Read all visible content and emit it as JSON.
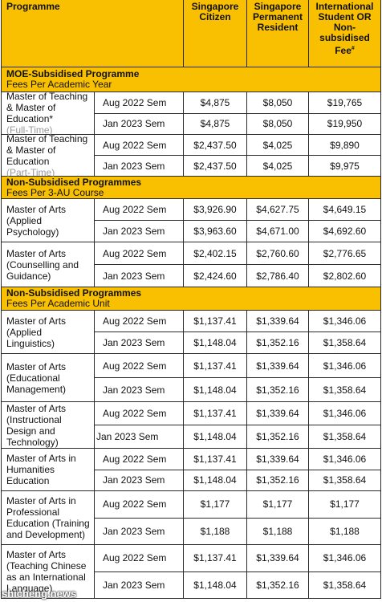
{
  "headers": {
    "programme": "Programme",
    "citizen": "Singapore Citizen",
    "pr": "Singapore Permanent Resident",
    "intl": "International Student OR Non-subsidised Fee",
    "intl_mark": "#"
  },
  "sections": [
    {
      "title": "MOE-Subsidised Programme",
      "subtitle": "Fees Per Academic Year",
      "programmes": [
        {
          "name": "Master of Teaching & Master of Education*",
          "note": "(Full-Time)",
          "rows": [
            {
              "sem": "Aug 2022 Sem",
              "citizen": "$4,875",
              "pr": "$8,050",
              "intl": "$19,765"
            },
            {
              "sem": "Jan 2023 Sem",
              "citizen": "$4,875",
              "pr": "$8,050",
              "intl": "$19,950"
            }
          ]
        },
        {
          "name": "Master of Teaching & Master of Education",
          "note": "(Part-Time)",
          "rows": [
            {
              "sem": "Aug 2022 Sem",
              "citizen": "$2,437.50",
              "pr": "$4,025",
              "intl": "$9,890"
            },
            {
              "sem": "Jan 2023 Sem",
              "citizen": "$2,437.50",
              "pr": "$4,025",
              "intl": "$9,975"
            }
          ]
        }
      ]
    },
    {
      "title": "Non-Subsidised Programmes",
      "subtitle": "Fees Per 3-AU Course",
      "programmes": [
        {
          "name": "Master of Arts (Applied Psychology)",
          "note": "",
          "rows": [
            {
              "sem": "Aug 2022 Sem",
              "citizen": "$3,926.90",
              "pr": "$4,627.75",
              "intl": "$4,649.15"
            },
            {
              "sem": "Jan 2023 Sem",
              "citizen": "$3,963.60",
              "pr": "$4,671.00",
              "intl": "$4,692.60"
            }
          ]
        },
        {
          "name": "Master of Arts (Counselling and Guidance)",
          "note": "",
          "rows": [
            {
              "sem": "Aug 2022 Sem",
              "citizen": "$2,402.15",
              "pr": "$2,760.60",
              "intl": "$2,776.65"
            },
            {
              "sem": "Jan 2023 Sem",
              "citizen": "$2,424.60",
              "pr": "$2,786.40",
              "intl": "$2,802.60"
            }
          ]
        }
      ]
    },
    {
      "title": "Non-Subsidised Programmes",
      "subtitle": "Fees Per Academic Unit",
      "programmes": [
        {
          "name": "Master of Arts (Applied Linguistics)",
          "note": "",
          "rows": [
            {
              "sem": "Aug 2022 Sem",
              "citizen": "$1,137.41",
              "pr": "$1,339.64",
              "intl": "$1,346.06"
            },
            {
              "sem": "Jan 2023 Sem",
              "citizen": "$1,148.04",
              "pr": "$1,352.16",
              "intl": "$1,358.64"
            }
          ]
        },
        {
          "name": "Master of Arts (Educational Management)",
          "note": "",
          "rows": [
            {
              "sem": "Aug 2022 Sem",
              "citizen": "$1,137.41",
              "pr": "$1,339.64",
              "intl": "$1,346.06"
            },
            {
              "sem": "Jan 2023 Sem",
              "citizen": "$1,148.04",
              "pr": "$1,352.16",
              "intl": "$1,358.64"
            }
          ]
        },
        {
          "name": "Master of Arts (Instructional Design and Technology)",
          "note": "",
          "rows": [
            {
              "sem": "Aug 2022 Sem",
              "citizen": "$1,137.41",
              "pr": "$1,339.64",
              "intl": "$1,346.06"
            },
            {
              "sem": "Jan 2023 Sem",
              "citizen": "$1,148.04",
              "pr": "$1,352.16",
              "intl": "$1,358.64"
            }
          ]
        },
        {
          "name": "Master of Arts in Humanities Education",
          "note": "",
          "rows": [
            {
              "sem": "Aug 2022 Sem",
              "citizen": "$1,137.41",
              "pr": "$1,339.64",
              "intl": "$1,346.06"
            },
            {
              "sem": "Jan 2023 Sem",
              "citizen": "$1,148.04",
              "pr": "$1,352.16",
              "intl": "$1,358.64"
            }
          ]
        },
        {
          "name": "Master of Arts in Professional Education (Training and Development)",
          "note": "",
          "rows": [
            {
              "sem": "Aug 2022 Sem",
              "citizen": "$1,177",
              "pr": "$1,177",
              "intl": "$1,177"
            },
            {
              "sem": "Jan 2023 Sem",
              "citizen": "$1,188",
              "pr": "$1,188",
              "intl": "$1,188"
            }
          ]
        },
        {
          "name": "Master of Arts (Teaching Chinese as an International Language)",
          "note": "",
          "rows": [
            {
              "sem": "Aug 2022 Sem",
              "citizen": "$1,137.41",
              "pr": "$1,339.64",
              "intl": "$1,346.06"
            },
            {
              "sem": "Jan 2023 Sem",
              "citizen": "$1,148.04",
              "pr": "$1,352.16",
              "intl": "$1,358.64"
            }
          ]
        }
      ]
    }
  ],
  "watermark": "shicheng.news",
  "colors": {
    "header_fill": "#f8c000",
    "note_text": "#999999",
    "border": "#2a2a2a"
  }
}
